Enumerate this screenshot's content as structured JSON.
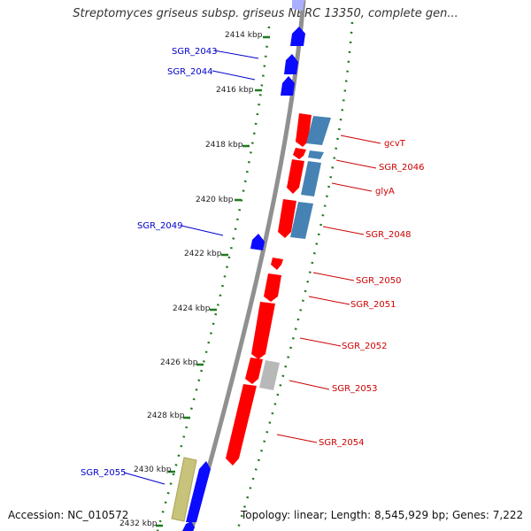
{
  "header": {
    "title": "Streptomyces griseus subsp. griseus NBRC 13350, complete gen..."
  },
  "footer": {
    "accession": "Accession: NC_010572",
    "stats": "Topology: linear; Length: 8,545,929 bp; Genes: 7,222"
  },
  "colors": {
    "forward_gene": "#0b0bff",
    "reverse_gene": "#ff0000",
    "blue_cds": "#4682b4",
    "gray_cds": "#b0b0b0",
    "olive_cds": "#c8c37a",
    "left_label": "#0000cc",
    "right_label": "#cc0000",
    "tick": "#1f7a1f"
  },
  "scale_labels": [
    "2414 kbp",
    "2416 kbp",
    "2418 kbp",
    "2420 kbp",
    "2422 kbp",
    "2424 kbp",
    "2426 kbp",
    "2428 kbp",
    "2430 kbp",
    "2432 kbp"
  ],
  "genes": {
    "left": [
      "SGR_2043",
      "SGR_2044",
      "SGR_2049",
      "SGR_2055"
    ],
    "right": [
      "gcvT",
      "SGR_2046",
      "glyA",
      "SGR_2048",
      "SGR_2050",
      "SGR_2051",
      "SGR_2052",
      "SGR_2053",
      "SGR_2054"
    ]
  }
}
